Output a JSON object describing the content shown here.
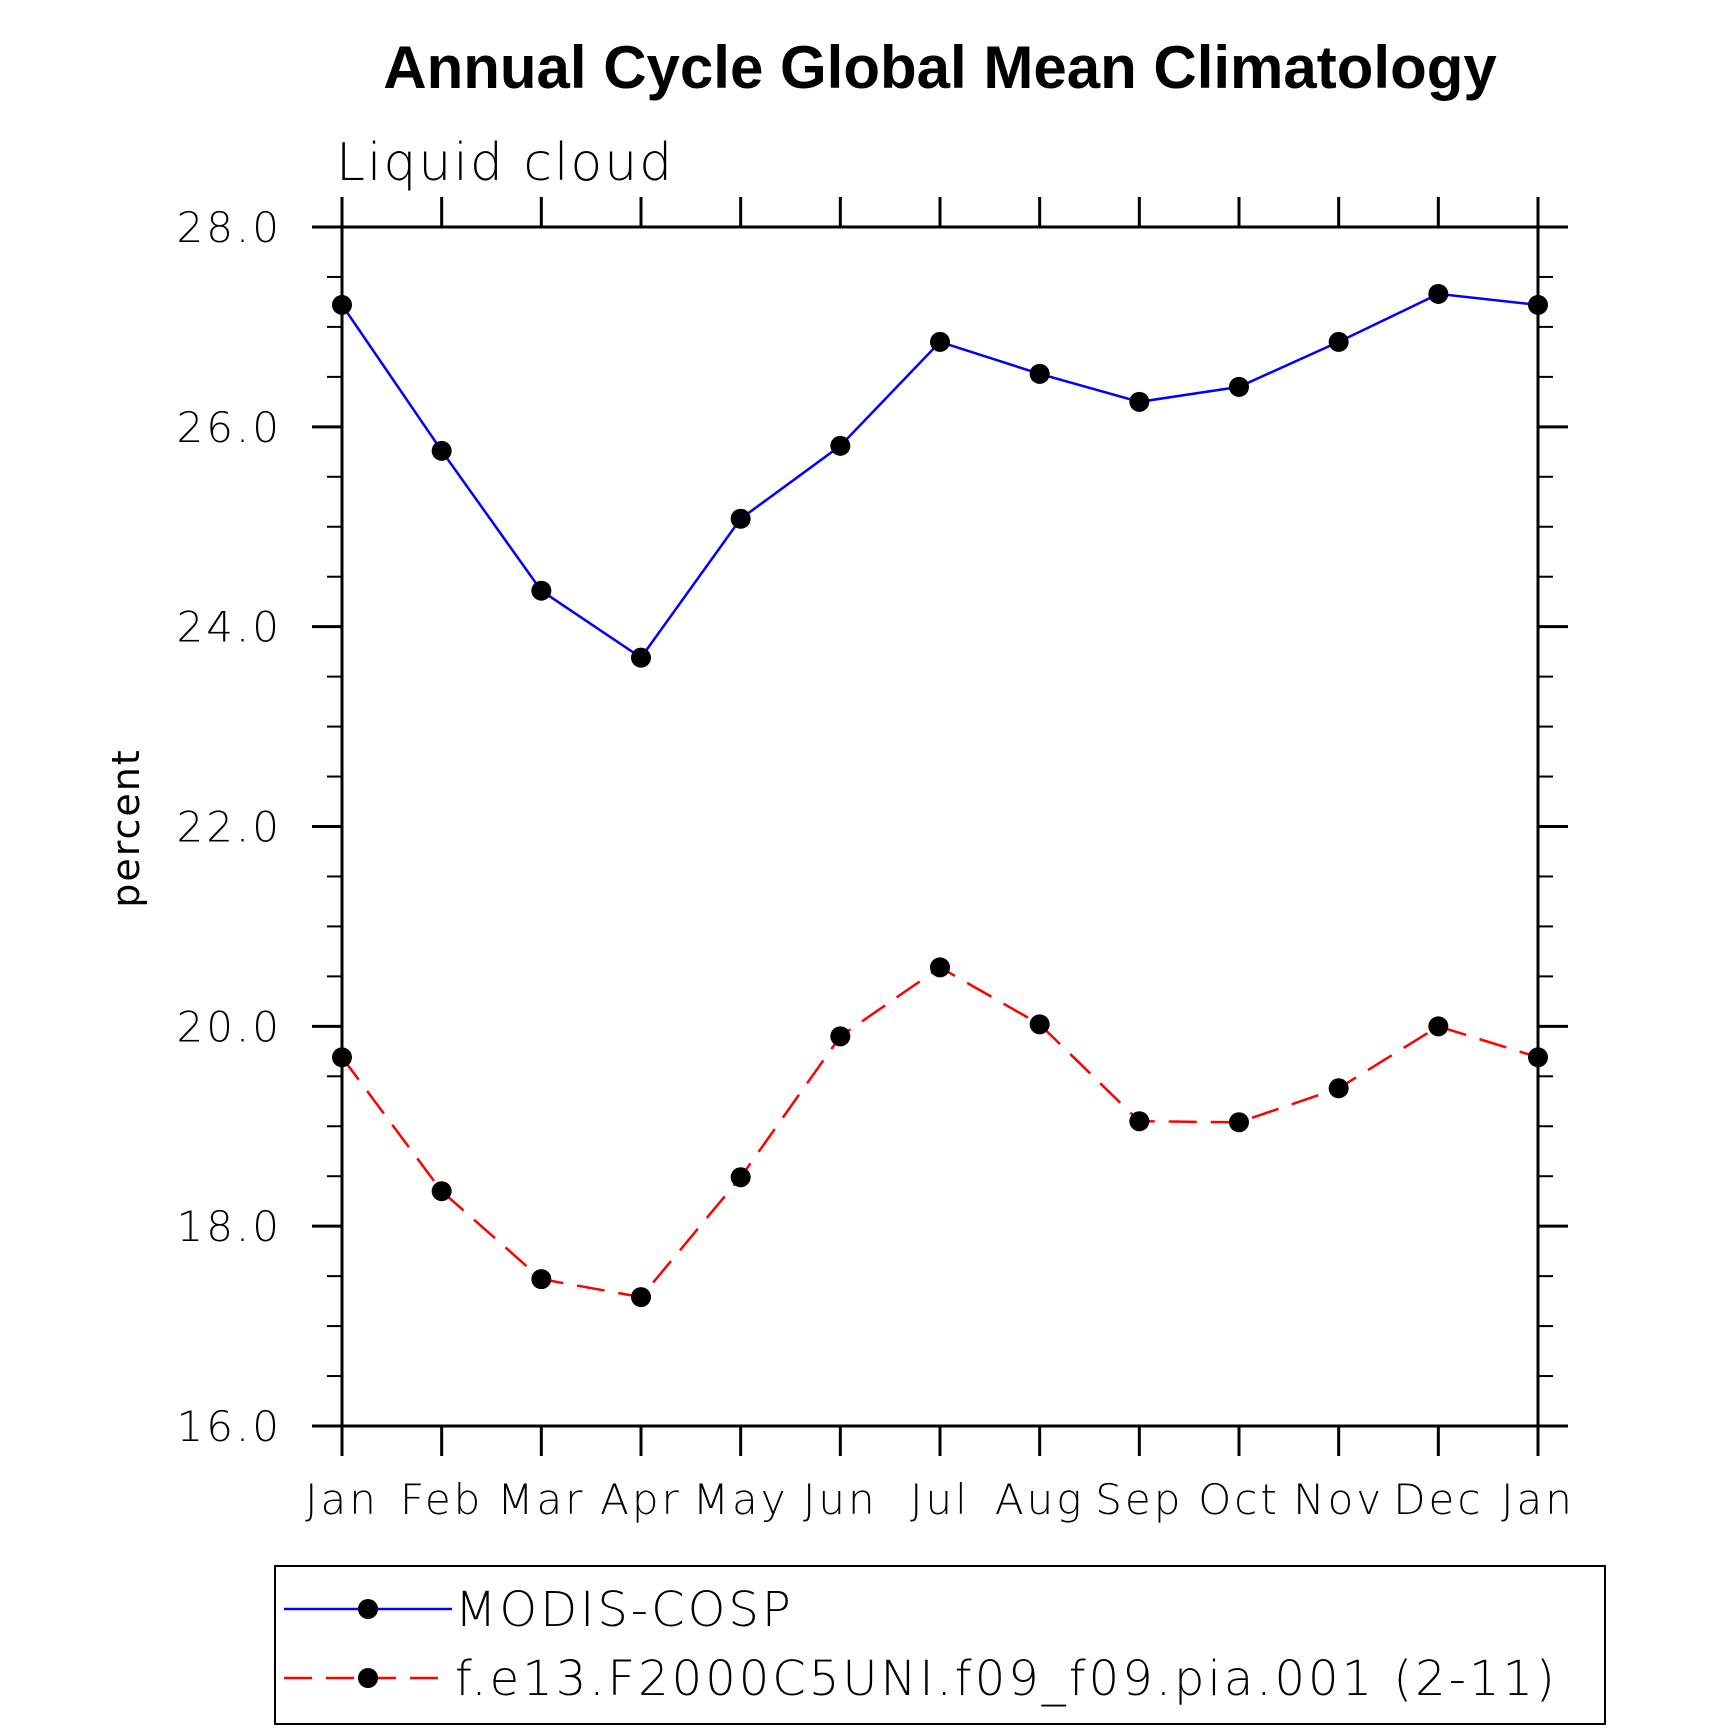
{
  "chart_data": {
    "type": "line",
    "title": "Annual Cycle Global Mean Climatology",
    "subtitle": "Liquid cloud",
    "xlabel": "",
    "ylabel": "percent",
    "categories": [
      "Jan",
      "Feb",
      "Mar",
      "Apr",
      "May",
      "Jun",
      "Jul",
      "Aug",
      "Sep",
      "Oct",
      "Nov",
      "Dec",
      "Jan"
    ],
    "ylim": [
      16.0,
      28.0
    ],
    "yticks": [
      "16.0",
      "18.0",
      "20.0",
      "22.0",
      "24.0",
      "26.0",
      "28.0"
    ],
    "grid": false,
    "legend_position": "bottom",
    "series": [
      {
        "name": "MODIS-COSP",
        "color": "#0000ff",
        "dash": "solid",
        "values": [
          27.22,
          25.76,
          24.36,
          23.69,
          25.08,
          25.81,
          26.85,
          26.53,
          26.25,
          26.4,
          26.85,
          27.33,
          27.22
        ]
      },
      {
        "name": "f.e13.F2000C5UNI.f09_f09.pia.001 (2-11)",
        "color": "#ff0000",
        "dash": "dashed",
        "values": [
          19.69,
          18.35,
          17.47,
          17.29,
          18.49,
          19.9,
          20.59,
          20.02,
          19.05,
          19.04,
          19.38,
          20.0,
          19.69
        ]
      }
    ]
  }
}
